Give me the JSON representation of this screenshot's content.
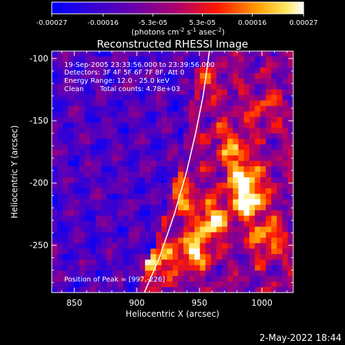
{
  "chart_data": {
    "type": "heatmap",
    "title": "Reconstructed RHESSI Image",
    "xlabel": "Heliocentric X (arcsec)",
    "ylabel": "Heliocentric Y (arcsec)",
    "xlim": [
      832,
      1025
    ],
    "ylim": [
      -288,
      -94
    ],
    "x_ticks": [
      850,
      900,
      950,
      1000
    ],
    "y_ticks": [
      -100,
      -150,
      -200,
      -250
    ],
    "colorbar": {
      "range": [
        -0.00027,
        0.00027
      ],
      "ticks": [
        "-0.00027",
        "-0.00016",
        "-5.3e-05",
        "5.3e-05",
        "0.00016",
        "0.00027"
      ],
      "ticks_values": [
        -0.00027,
        -0.00016,
        -5.3e-05,
        5.3e-05,
        0.00016,
        0.00027
      ],
      "units_text": "(photons cm",
      "units_exp1": "-2",
      "units_mid": " s",
      "units_exp2": "-1",
      "units_end": " asec",
      "units_exp3": "-2",
      "units_close": ")",
      "colormap": "rainbow-blue-purple-red-yellow-white"
    },
    "annotations": {
      "time": "19-Sep-2005 23:33:56.000 to 23:39:56.000",
      "detectors": "Detectors: 3F 4F 5F 6F 7F 8F, Att 0",
      "energy": "Energy Range: 12.0 - 25.0 keV",
      "clean_label": "Clean",
      "total_counts": "Total counts: 4.78e+03",
      "peak": "Position of Peak = [997,-226]"
    },
    "peak": {
      "x": 997,
      "y": -226
    },
    "limb_curve": [
      {
        "x": 906,
        "y": -288
      },
      {
        "x": 918,
        "y": -260
      },
      {
        "x": 930,
        "y": -225
      },
      {
        "x": 940,
        "y": -190
      },
      {
        "x": 947,
        "y": -160
      },
      {
        "x": 953,
        "y": -130
      },
      {
        "x": 958,
        "y": -94
      }
    ],
    "hot_regions": [
      {
        "x": 990,
        "y": -215,
        "strength": 1.0
      },
      {
        "x": 985,
        "y": -195,
        "strength": 0.85
      },
      {
        "x": 960,
        "y": -230,
        "strength": 0.85
      },
      {
        "x": 945,
        "y": -255,
        "strength": 0.9
      },
      {
        "x": 905,
        "y": -245,
        "strength": 0.75
      },
      {
        "x": 915,
        "y": -265,
        "strength": 0.7
      },
      {
        "x": 975,
        "y": -170,
        "strength": 0.6
      },
      {
        "x": 1005,
        "y": -245,
        "strength": 0.7
      },
      {
        "x": 935,
        "y": -210,
        "strength": 0.6
      },
      {
        "x": 870,
        "y": -240,
        "strength": 0.45
      },
      {
        "x": 950,
        "y": -120,
        "strength": 0.45
      },
      {
        "x": 1000,
        "y": -140,
        "strength": 0.4
      }
    ]
  },
  "footer": {
    "date": "2-May-2022 18:44"
  }
}
